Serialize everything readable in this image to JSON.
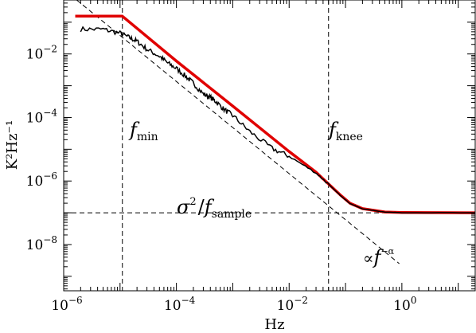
{
  "chart_data": {
    "type": "line",
    "xlabel": "Hz",
    "ylabel": "K²Hz⁻¹",
    "xscale": "log",
    "yscale": "log",
    "xlim": [
      1e-06,
      20
    ],
    "ylim": [
      3.5e-10,
      0.5
    ],
    "grid": false,
    "x_ticks": [
      {
        "value": 1e-06,
        "base": "10",
        "exp": "−6"
      },
      {
        "value": 0.0001,
        "base": "10",
        "exp": "−4"
      },
      {
        "value": 0.01,
        "base": "10",
        "exp": "−2"
      },
      {
        "value": 1,
        "base": "10",
        "exp": "0"
      }
    ],
    "y_ticks": [
      {
        "value": 1e-08,
        "base": "10",
        "exp": "−8"
      },
      {
        "value": 1e-06,
        "base": "10",
        "exp": "−6"
      },
      {
        "value": 0.0001,
        "base": "10",
        "exp": "−4"
      },
      {
        "value": 0.01,
        "base": "10",
        "exp": "−2"
      }
    ],
    "series": [
      {
        "color": "#e00000",
        "style": "solid-thick",
        "x": [
          1.6e-06,
          1.1e-05,
          0.0001,
          0.001,
          0.01,
          0.03,
          0.05,
          0.08,
          0.12,
          0.2,
          0.5,
          1,
          20
        ],
        "y": [
          0.155,
          0.155,
          0.006,
          0.00023,
          8.5e-06,
          1.9e-06,
          8.1e-07,
          3.7e-07,
          2e-07,
          1.35e-07,
          1.06e-07,
          1.02e-07,
          1e-07
        ]
      },
      {
        "color": "#000000",
        "style": "solid-noisy",
        "x": [
          2e-06,
          5e-06,
          1e-05,
          1.5e-05,
          2e-05,
          3e-05,
          5e-05,
          7e-05,
          0.0001,
          0.00015,
          0.0002,
          0.0003,
          0.0004,
          0.0005,
          0.0007,
          0.001,
          0.002,
          0.005,
          0.01,
          0.03,
          0.05,
          0.08,
          0.12,
          0.2,
          0.5,
          1,
          20
        ],
        "y": [
          0.06,
          0.06,
          0.045,
          0.032,
          0.025,
          0.014,
          0.0085,
          0.0052,
          0.0035,
          0.0019,
          0.0012,
          0.00055,
          0.00043,
          0.00032,
          0.00018,
          0.000115,
          3.6e-05,
          1.05e-05,
          6e-06,
          1.8e-06,
          7.9e-07,
          3.6e-07,
          1.95e-07,
          1.33e-07,
          1.05e-07,
          1.01e-07,
          1e-07
        ]
      }
    ],
    "reference_lines": {
      "f_min": 1.1e-05,
      "f_knee": 0.05,
      "white_noise_level": 1e-07,
      "power_law": {
        "x": [
          1.7e-06,
          0.9
        ],
        "y": [
          0.5,
          2.5e-09
        ]
      }
    },
    "annotations": {
      "fmin": {
        "italic": "f",
        "sub": "min"
      },
      "fknee": {
        "italic": "f",
        "sub": "knee"
      },
      "sigma": {
        "main": "σ",
        "sup": "2",
        "slash": "/",
        "italic": "f",
        "sub": "sample"
      },
      "propto": {
        "symbol": "∝",
        "italic": "f",
        "sup": "−α"
      }
    }
  }
}
